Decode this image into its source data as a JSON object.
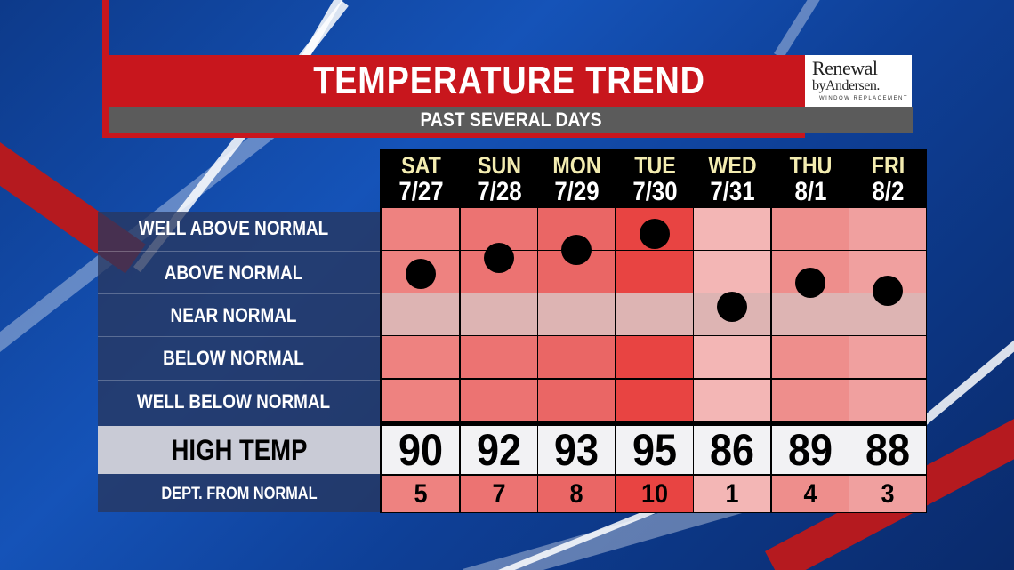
{
  "title": "TEMPERATURE TREND",
  "subtitle": "PAST SEVERAL DAYS",
  "sponsor": {
    "line1": "Renewal",
    "line2": "byAndersen.",
    "line3": "WINDOW REPLACEMENT"
  },
  "rows": [
    "WELL ABOVE NORMAL",
    "ABOVE NORMAL",
    "NEAR NORMAL",
    "BELOW NORMAL",
    "WELL BELOW NORMAL"
  ],
  "high_label": "HIGH TEMP",
  "dept_label": "DEPT. FROM NORMAL",
  "colors": {
    "dept_1": "#f3b6b5",
    "dept_3": "#f0a09f",
    "dept_4": "#ee8e8c",
    "dept_5": "#ee8280",
    "dept_7": "#ec7372",
    "dept_8": "#ea6665",
    "dept_10": "#e84442",
    "near_normal_tint": "#f5c8c6",
    "dot": "#000000"
  },
  "chart_data": {
    "type": "table",
    "days": [
      {
        "day": "SAT",
        "date": "7/27",
        "high": "90",
        "dept": "5",
        "dept_value": 5
      },
      {
        "day": "SUN",
        "date": "7/28",
        "high": "92",
        "dept": "7",
        "dept_value": 7
      },
      {
        "day": "MON",
        "date": "7/29",
        "high": "93",
        "dept": "8",
        "dept_value": 8
      },
      {
        "day": "TUE",
        "date": "7/30",
        "high": "95",
        "dept": "10",
        "dept_value": 10
      },
      {
        "day": "WED",
        "date": "7/31",
        "high": "86",
        "dept": "1",
        "dept_value": 1
      },
      {
        "day": "THU",
        "date": "8/1",
        "high": "89",
        "dept": "4",
        "dept_value": 4
      },
      {
        "day": "FRI",
        "date": "8/2",
        "high": "88",
        "dept": "3",
        "dept_value": 3
      }
    ]
  }
}
